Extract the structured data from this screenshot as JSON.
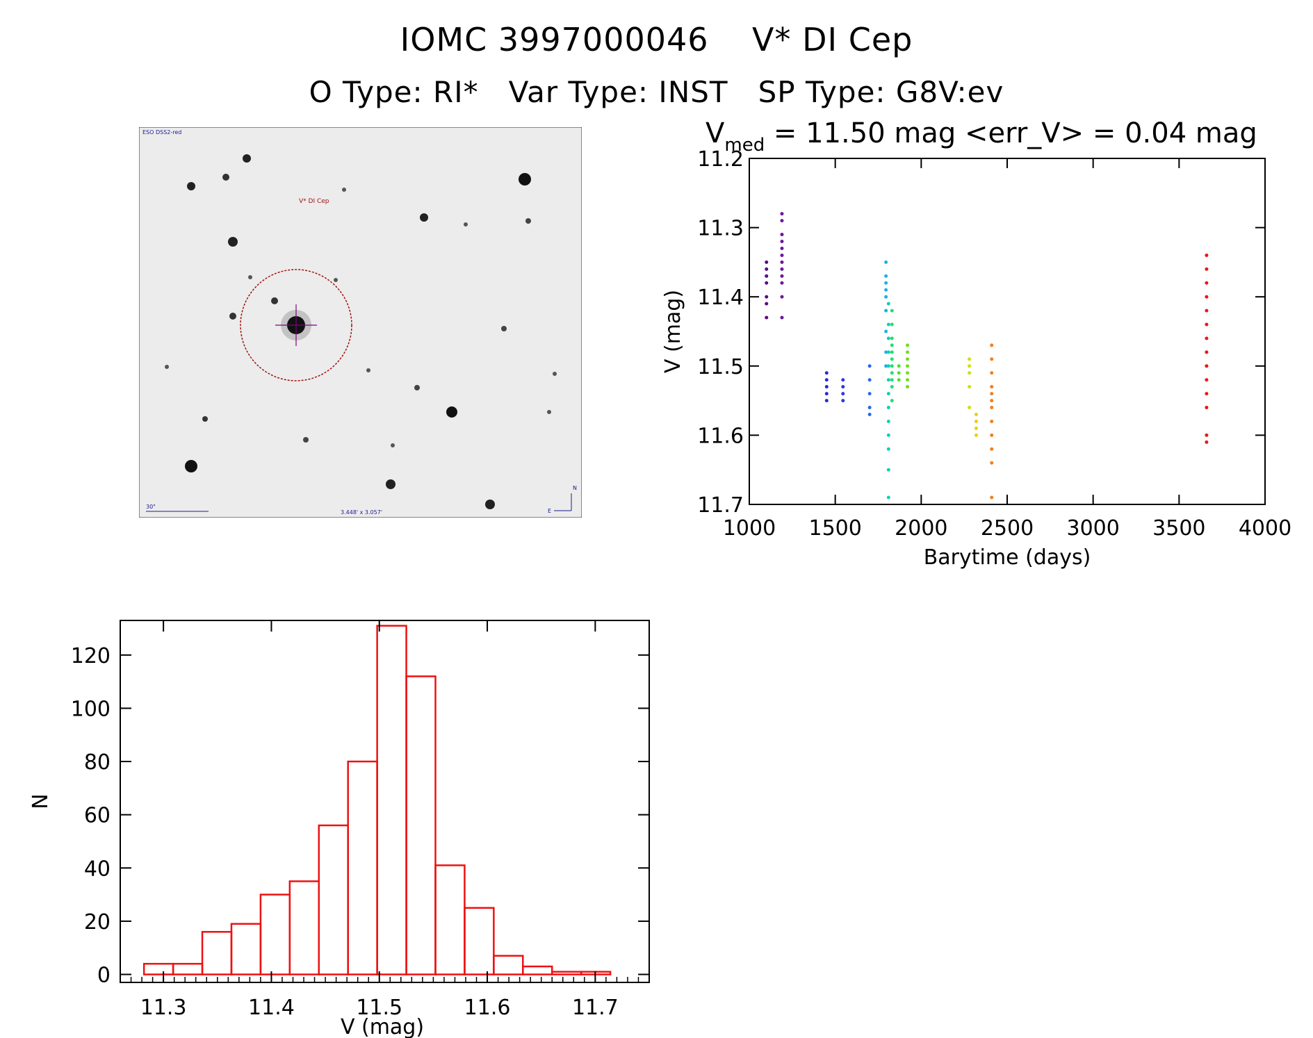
{
  "header": {
    "line1": "IOMC 3997000046    V* DI Cep",
    "line2": "O Type: RI*   Var Type: INST   SP Type: G8V:ev"
  },
  "sky_image": {
    "survey_label": "ESO DSS2-red",
    "target_label": "V* DI Cep",
    "scale_label": "30\"",
    "fov_label": "3.448' x 3.057'",
    "north_label": "N",
    "east_label": "E"
  },
  "chart_data": [
    {
      "type": "scatter",
      "title_prefix": "V",
      "title_subscript": "med",
      "title_rest": " = 11.50 mag <err_V> = 0.04 mag",
      "xlabel": "Barytime (days)",
      "ylabel": "V (mag)",
      "xlim": [
        1000,
        4000
      ],
      "ylim": [
        11.7,
        11.2
      ],
      "xticks": [
        "1000",
        "1500",
        "2000",
        "2500",
        "3000",
        "3500",
        "4000"
      ],
      "yticks": [
        "11.2",
        "11.3",
        "11.4",
        "11.5",
        "11.6",
        "11.7"
      ],
      "series": [
        {
          "name": "1100",
          "color": "#5a0b82",
          "x": 1100,
          "values": [
            11.35,
            11.36,
            11.37,
            11.38,
            11.4,
            11.41,
            11.43
          ]
        },
        {
          "name": "1190",
          "color": "#6a1a9a",
          "x": 1190,
          "values": [
            11.28,
            11.29,
            11.31,
            11.32,
            11.33,
            11.34,
            11.35,
            11.36,
            11.37,
            11.38,
            11.4,
            11.43
          ]
        },
        {
          "name": "1450",
          "color": "#2a2ad8",
          "x": 1450,
          "values": [
            11.51,
            11.52,
            11.53,
            11.54,
            11.55
          ]
        },
        {
          "name": "1545",
          "color": "#2a3ae0",
          "x": 1545,
          "values": [
            11.52,
            11.53,
            11.54,
            11.55
          ]
        },
        {
          "name": "1700",
          "color": "#2a6ae8",
          "x": 1700,
          "values": [
            11.5,
            11.52,
            11.54,
            11.56,
            11.57
          ]
        },
        {
          "name": "1795",
          "color": "#20b0e8",
          "x": 1795,
          "values": [
            11.35,
            11.37,
            11.38,
            11.39,
            11.4,
            11.42,
            11.45,
            11.48,
            11.5
          ]
        },
        {
          "name": "1810",
          "color": "#10d0b0",
          "x": 1810,
          "values": [
            11.41,
            11.44,
            11.46,
            11.48,
            11.5,
            11.52,
            11.54,
            11.56,
            11.58,
            11.6,
            11.62,
            11.65,
            11.69
          ]
        },
        {
          "name": "1830",
          "color": "#20e070",
          "x": 1830,
          "values": [
            11.42,
            11.44,
            11.46,
            11.47,
            11.48,
            11.49,
            11.5,
            11.51,
            11.52,
            11.53,
            11.55
          ]
        },
        {
          "name": "1870",
          "color": "#50e030",
          "x": 1870,
          "values": [
            11.5,
            11.51,
            11.52
          ]
        },
        {
          "name": "1920",
          "color": "#70e020",
          "x": 1920,
          "values": [
            11.47,
            11.48,
            11.49,
            11.5,
            11.51,
            11.52,
            11.53
          ]
        },
        {
          "name": "2280",
          "color": "#d0e010",
          "x": 2280,
          "values": [
            11.49,
            11.5,
            11.51,
            11.53,
            11.56
          ]
        },
        {
          "name": "2320",
          "color": "#e8d010",
          "x": 2320,
          "values": [
            11.57,
            11.58,
            11.59,
            11.6
          ]
        },
        {
          "name": "2410",
          "color": "#f08020",
          "x": 2410,
          "values": [
            11.47,
            11.49,
            11.51,
            11.53,
            11.54,
            11.55,
            11.56,
            11.58,
            11.6,
            11.62,
            11.64,
            11.69
          ]
        },
        {
          "name": "3660",
          "color": "#e81818",
          "x": 3660,
          "values": [
            11.34,
            11.36,
            11.38,
            11.4,
            11.42,
            11.44,
            11.46,
            11.48,
            11.5,
            11.52,
            11.54,
            11.56,
            11.6,
            11.61
          ]
        }
      ]
    },
    {
      "type": "bar",
      "xlabel": "V (mag)",
      "ylabel": "N",
      "xlim": [
        11.26,
        11.75
      ],
      "ylim": [
        -3,
        133
      ],
      "xticks": [
        "11.3",
        "11.4",
        "11.5",
        "11.6",
        "11.7"
      ],
      "yticks": [
        "0",
        "20",
        "40",
        "60",
        "80",
        "100",
        "120"
      ],
      "color": "#ee1111",
      "bin_edges": [
        11.282,
        11.309,
        11.336,
        11.363,
        11.39,
        11.417,
        11.444,
        11.471,
        11.498,
        11.525,
        11.552,
        11.579,
        11.606,
        11.633,
        11.66,
        11.687,
        11.714
      ],
      "values": [
        4,
        4,
        16,
        19,
        30,
        35,
        56,
        80,
        131,
        112,
        41,
        25,
        7,
        3,
        1,
        1
      ]
    }
  ]
}
